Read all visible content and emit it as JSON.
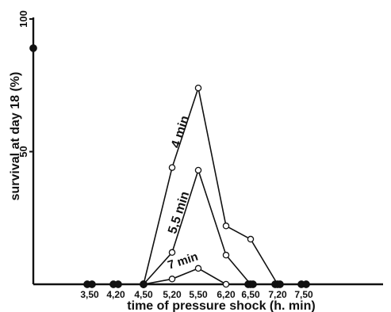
{
  "chart_data": {
    "type": "line",
    "title": "",
    "xlabel": "time of pressure shock (h. min)",
    "ylabel": "survival at day 18 (%)",
    "ylim": [
      0,
      100
    ],
    "y_ticks": [
      {
        "value": 100,
        "label": "100"
      },
      {
        "value": 50,
        "label": "50"
      }
    ],
    "x_ticks": [
      "3,50",
      "4,20",
      "4,50",
      "5,20",
      "5,50",
      "6,20",
      "6,50",
      "7,20",
      "7,50"
    ],
    "control": {
      "value": 89,
      "marker": "filled"
    },
    "series": [
      {
        "name": "4 min",
        "points": [
          {
            "x": "4,50",
            "y": 0,
            "filled": true
          },
          {
            "x": "5,20",
            "y": 44,
            "filled": false
          },
          {
            "x": "5,50",
            "y": 74,
            "filled": false
          },
          {
            "x": "6,20",
            "y": 22,
            "filled": false
          },
          {
            "x": "6,50",
            "y": 17,
            "filled": false
          },
          {
            "x": "7,20",
            "y": 0,
            "filled": true
          }
        ]
      },
      {
        "name": "5,5 min",
        "points": [
          {
            "x": "4,50",
            "y": 0,
            "filled": true
          },
          {
            "x": "5,20",
            "y": 12,
            "filled": false
          },
          {
            "x": "5,50",
            "y": 43,
            "filled": false
          },
          {
            "x": "6,20",
            "y": 11,
            "filled": false
          },
          {
            "x": "6,50",
            "y": 0,
            "filled": true
          }
        ]
      },
      {
        "name": "7 min",
        "points": [
          {
            "x": "4,50",
            "y": 0,
            "filled": true
          },
          {
            "x": "5,20",
            "y": 2,
            "filled": false
          },
          {
            "x": "5,50",
            "y": 6,
            "filled": false
          },
          {
            "x": "6,20",
            "y": 0,
            "filled": false
          }
        ]
      }
    ],
    "baseline_points": [
      {
        "x": "3,50",
        "y": 0,
        "filled": true
      },
      {
        "x": "4,20",
        "y": 0,
        "filled": true
      },
      {
        "x": "6,50",
        "y": 0,
        "filled": true
      },
      {
        "x": "7,20",
        "y": 0,
        "filled": true
      },
      {
        "x": "7,50",
        "y": 0,
        "filled": true
      }
    ]
  }
}
